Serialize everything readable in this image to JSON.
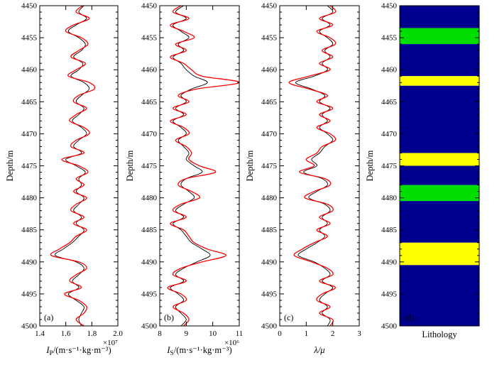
{
  "figure": {
    "background": "#ffffff",
    "curve_colors": {
      "measured": "#000000",
      "inverted": "#ff0000"
    },
    "lithology_colors": {
      "shale": "#00008F",
      "gas_sand": "#FFFF00",
      "sand": "#00DF00"
    }
  },
  "chart_data": [
    {
      "type": "line",
      "panel_label": "(a)",
      "xlabel_segments": [
        {
          "t": "I",
          "i": 1
        },
        {
          "t": "P",
          "s": 1
        },
        {
          "t": "/(m·s⁻¹·kg·m⁻³)"
        }
      ],
      "x_scale_label": "×10⁷",
      "xlim": [
        1.4,
        2.0
      ],
      "xticks": [
        1.4,
        1.6,
        1.8,
        2.0
      ],
      "xtick_labels": [
        "1.4",
        "1.6",
        "1.8",
        "2.0"
      ],
      "ylabel": "Depth/m",
      "ylim": [
        4450,
        4500
      ],
      "yticks": [
        4450,
        4455,
        4460,
        4465,
        4470,
        4475,
        4480,
        4485,
        4490,
        4495,
        4500
      ],
      "depth_start": 4450,
      "depth_step": 1,
      "series": [
        {
          "name": "measured",
          "color": "#000000",
          "values": [
            1.74,
            1.7,
            1.76,
            1.68,
            1.62,
            1.7,
            1.75,
            1.72,
            1.66,
            1.73,
            1.7,
            1.64,
            1.74,
            1.78,
            1.72,
            1.68,
            1.74,
            1.7,
            1.65,
            1.72,
            1.76,
            1.7,
            1.66,
            1.72,
            1.6,
            1.68,
            1.75,
            1.7,
            1.72,
            1.68,
            1.74,
            1.7,
            1.66,
            1.72,
            1.68,
            1.74,
            1.7,
            1.65,
            1.58,
            1.52,
            1.68,
            1.74,
            1.7,
            1.65,
            1.7,
            1.62,
            1.68,
            1.74,
            1.72,
            1.7,
            1.72
          ]
        },
        {
          "name": "inverted",
          "color": "#ff0000",
          "values": [
            1.73,
            1.68,
            1.78,
            1.66,
            1.6,
            1.72,
            1.77,
            1.7,
            1.64,
            1.75,
            1.68,
            1.62,
            1.78,
            1.82,
            1.7,
            1.66,
            1.76,
            1.68,
            1.63,
            1.74,
            1.78,
            1.68,
            1.64,
            1.74,
            1.57,
            1.7,
            1.77,
            1.68,
            1.74,
            1.66,
            1.76,
            1.68,
            1.64,
            1.74,
            1.66,
            1.76,
            1.68,
            1.63,
            1.55,
            1.49,
            1.7,
            1.76,
            1.68,
            1.63,
            1.72,
            1.59,
            1.7,
            1.76,
            1.74,
            1.68,
            1.74
          ]
        }
      ]
    },
    {
      "type": "line",
      "panel_label": "(b)",
      "xlabel_segments": [
        {
          "t": "I",
          "i": 1
        },
        {
          "t": "S",
          "s": 1
        },
        {
          "t": "/(m·s⁻¹·kg·m⁻³)"
        }
      ],
      "x_scale_label": "×10⁶",
      "xlim": [
        8,
        11
      ],
      "xticks": [
        8,
        9,
        10,
        11
      ],
      "xtick_labels": [
        "8",
        "9",
        "10",
        "11"
      ],
      "ylabel": "Depth/m",
      "ylim": [
        4450,
        4500
      ],
      "yticks": [
        4450,
        4455,
        4460,
        4465,
        4470,
        4475,
        4480,
        4485,
        4490,
        4495,
        4500
      ],
      "depth_start": 4450,
      "depth_step": 1,
      "series": [
        {
          "name": "measured",
          "color": "#000000",
          "values": [
            8.9,
            8.6,
            9.0,
            8.5,
            8.8,
            9.1,
            8.7,
            8.9,
            8.5,
            8.8,
            9.0,
            9.3,
            9.8,
            9.2,
            8.8,
            9.0,
            8.6,
            8.9,
            8.5,
            8.8,
            9.0,
            8.7,
            8.9,
            9.1,
            9.0,
            9.3,
            9.6,
            9.0,
            8.8,
            9.1,
            9.3,
            8.9,
            8.6,
            8.9,
            8.5,
            8.8,
            9.0,
            9.2,
            9.6,
            9.9,
            9.4,
            8.9,
            8.6,
            8.9,
            8.4,
            8.7,
            8.9,
            8.6,
            8.8,
            9.0,
            8.8
          ]
        },
        {
          "name": "inverted",
          "color": "#ff0000",
          "values": [
            8.8,
            8.5,
            9.1,
            8.4,
            8.9,
            9.3,
            8.6,
            9.0,
            8.4,
            8.9,
            9.2,
            9.6,
            11.0,
            9.4,
            8.7,
            9.1,
            8.5,
            9.0,
            8.4,
            8.9,
            9.1,
            8.6,
            9.0,
            9.2,
            9.1,
            9.5,
            10.1,
            9.0,
            8.7,
            9.2,
            9.5,
            8.8,
            8.5,
            9.0,
            8.4,
            8.9,
            9.1,
            9.3,
            9.8,
            10.5,
            9.6,
            8.8,
            8.5,
            9.0,
            8.3,
            8.8,
            9.0,
            8.5,
            8.9,
            9.1,
            8.9
          ]
        }
      ]
    },
    {
      "type": "line",
      "panel_label": "(c)",
      "xlabel_segments": [
        {
          "t": "λ/μ",
          "i": 1
        }
      ],
      "x_scale_label": "",
      "xlim": [
        0,
        3
      ],
      "xticks": [
        0,
        1,
        2,
        3
      ],
      "xtick_labels": [
        "0",
        "1",
        "2",
        "3"
      ],
      "ylabel": "Depth/m",
      "ylim": [
        4450,
        4500
      ],
      "yticks": [
        4450,
        4455,
        4460,
        4465,
        4470,
        4475,
        4480,
        4485,
        4490,
        4495,
        4500
      ],
      "depth_start": 4450,
      "depth_step": 1,
      "series": [
        {
          "name": "measured",
          "color": "#000000",
          "values": [
            1.8,
            2.0,
            1.6,
            1.9,
            1.5,
            1.8,
            2.0,
            1.7,
            1.9,
            1.6,
            1.8,
            1.3,
            0.6,
            1.2,
            1.7,
            1.5,
            1.9,
            1.6,
            1.8,
            1.5,
            1.8,
            2.0,
            1.7,
            1.5,
            1.2,
            1.4,
            0.9,
            1.6,
            1.8,
            1.4,
            1.1,
            1.7,
            1.9,
            1.6,
            1.8,
            1.5,
            1.7,
            1.4,
            1.0,
            0.7,
            1.3,
            1.7,
            1.9,
            1.6,
            2.0,
            1.7,
            1.5,
            1.8,
            1.6,
            1.9,
            1.8
          ]
        },
        {
          "name": "inverted",
          "color": "#ff0000",
          "values": [
            1.9,
            2.1,
            1.5,
            2.0,
            1.4,
            1.9,
            2.1,
            1.6,
            2.0,
            1.5,
            1.9,
            1.1,
            0.35,
            1.1,
            1.8,
            1.4,
            2.0,
            1.5,
            1.9,
            1.4,
            1.9,
            2.1,
            1.6,
            1.4,
            1.0,
            1.3,
            0.75,
            1.7,
            1.9,
            1.3,
            0.95,
            1.8,
            2.0,
            1.5,
            1.9,
            1.4,
            1.8,
            1.3,
            0.85,
            0.55,
            1.2,
            1.8,
            2.0,
            1.5,
            2.1,
            1.6,
            1.4,
            1.9,
            1.5,
            2.0,
            1.9
          ]
        }
      ]
    },
    {
      "type": "lithology-column",
      "panel_label": "(d)",
      "xlabel_segments": [
        {
          "t": "Lithology"
        }
      ],
      "x_scale_label": "",
      "xlim": [
        0,
        1
      ],
      "ylabel": "Depth/m",
      "ylim": [
        4450,
        4500
      ],
      "yticks": [
        4450,
        4455,
        4460,
        4465,
        4470,
        4475,
        4480,
        4485,
        4490,
        4495,
        4500
      ],
      "segments": [
        {
          "top": 4450.0,
          "base": 4453.5,
          "color": "#00008F"
        },
        {
          "top": 4453.5,
          "base": 4456.0,
          "color": "#00DF00"
        },
        {
          "top": 4456.0,
          "base": 4461.0,
          "color": "#00008F"
        },
        {
          "top": 4461.0,
          "base": 4462.5,
          "color": "#FFFF00"
        },
        {
          "top": 4462.5,
          "base": 4473.0,
          "color": "#00008F"
        },
        {
          "top": 4473.0,
          "base": 4475.0,
          "color": "#FFFF00"
        },
        {
          "top": 4475.0,
          "base": 4478.0,
          "color": "#00008F"
        },
        {
          "top": 4478.0,
          "base": 4480.5,
          "color": "#00DF00"
        },
        {
          "top": 4480.5,
          "base": 4487.0,
          "color": "#00008F"
        },
        {
          "top": 4487.0,
          "base": 4490.5,
          "color": "#FFFF00"
        },
        {
          "top": 4490.5,
          "base": 4500.0,
          "color": "#00008F"
        }
      ]
    }
  ]
}
